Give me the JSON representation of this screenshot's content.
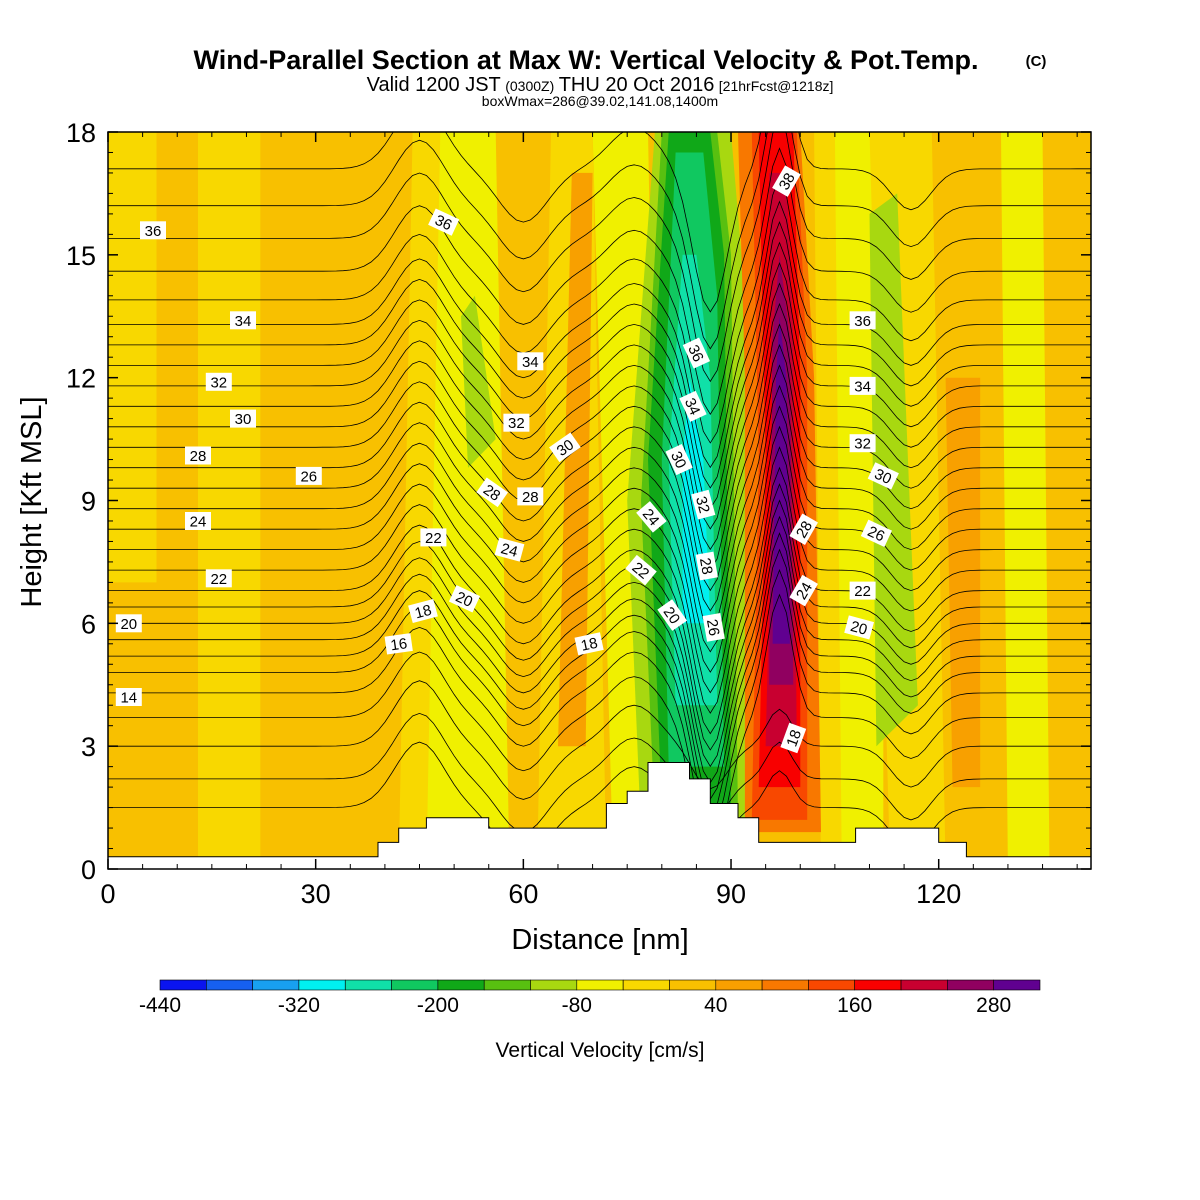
{
  "header": {
    "title": "Wind-Parallel Section at Max W: Vertical Velocity & Pot.Temp.",
    "copyright": "(C)",
    "valid_prefix": "Valid 1200 JST",
    "valid_utc": "(0300Z)",
    "valid_date": "THU 20 Oct 2016",
    "forecast_tag": "[21hrFcst@1218z]",
    "box_info": "boxWmax=286@39.02,141.08,1400m"
  },
  "chart_data": {
    "type": "contour",
    "xlabel": "Distance [nm]",
    "ylabel": "Height [Kft MSL]",
    "xlim": [
      0,
      142
    ],
    "ylim": [
      0,
      18
    ],
    "x_ticks": [
      0,
      30,
      60,
      90,
      120
    ],
    "y_ticks": [
      0,
      3,
      6,
      9,
      12,
      15,
      18
    ],
    "x_tick_labels": [
      "0",
      "30",
      "60",
      "90",
      "120"
    ],
    "y_tick_labels": [
      "0",
      "3",
      "6",
      "9",
      "12",
      "15",
      "18"
    ],
    "filled_field": {
      "name": "Vertical Velocity",
      "colorbar_label": "Vertical Velocity [cm/s]",
      "levels": [
        -440,
        -400,
        -360,
        -320,
        -280,
        -240,
        -200,
        -160,
        -120,
        -80,
        -40,
        0,
        40,
        80,
        120,
        160,
        200,
        240,
        280,
        320
      ],
      "colorbar_tick_labels": [
        "-440",
        "-320",
        "-200",
        "-80",
        "40",
        "160",
        "280"
      ],
      "colors": [
        "#0a14f0",
        "#1660f0",
        "#18a0f0",
        "#00f0f0",
        "#10e0a8",
        "#10c860",
        "#10a818",
        "#58c010",
        "#a8d810",
        "#f0f000",
        "#f8d800",
        "#f8c000",
        "#f8a000",
        "#f87800",
        "#f84800",
        "#f80000",
        "#c80030",
        "#900060",
        "#600090"
      ]
    },
    "features": [
      {
        "kind": "downdraft",
        "x_range": [
          78,
          92
        ],
        "min_value": -240
      },
      {
        "kind": "updraft",
        "x_range": [
          93,
          101
        ],
        "max_value": 286
      },
      {
        "kind": "terrain",
        "x_peak": 81,
        "height_peak": 2.6
      }
    ],
    "contour_labels": [
      {
        "text": "36",
        "x": 6.5,
        "y": 15.6,
        "angle": 0
      },
      {
        "text": "34",
        "x": 19.5,
        "y": 13.4,
        "angle": 0
      },
      {
        "text": "32",
        "x": 16,
        "y": 11.9,
        "angle": 0
      },
      {
        "text": "30",
        "x": 19.5,
        "y": 11.0,
        "angle": 0
      },
      {
        "text": "28",
        "x": 13,
        "y": 10.1,
        "angle": 0
      },
      {
        "text": "26",
        "x": 29,
        "y": 9.6,
        "angle": 0
      },
      {
        "text": "24",
        "x": 13,
        "y": 8.5,
        "angle": 0
      },
      {
        "text": "22",
        "x": 16,
        "y": 7.1,
        "angle": 0
      },
      {
        "text": "20",
        "x": 3,
        "y": 6.0,
        "angle": 0
      },
      {
        "text": "14",
        "x": 3,
        "y": 4.2,
        "angle": 0
      },
      {
        "text": "36",
        "x": 48.5,
        "y": 15.8,
        "angle": 25
      },
      {
        "text": "34",
        "x": 61,
        "y": 12.4,
        "angle": 0
      },
      {
        "text": "32",
        "x": 59,
        "y": 10.9,
        "angle": 0
      },
      {
        "text": "30",
        "x": 66,
        "y": 10.3,
        "angle": -35
      },
      {
        "text": "28",
        "x": 55.5,
        "y": 9.2,
        "angle": 35
      },
      {
        "text": "28",
        "x": 61,
        "y": 9.1,
        "angle": 0
      },
      {
        "text": "22",
        "x": 47,
        "y": 8.1,
        "angle": 0
      },
      {
        "text": "24",
        "x": 58,
        "y": 7.8,
        "angle": 15
      },
      {
        "text": "20",
        "x": 51.5,
        "y": 6.6,
        "angle": 25
      },
      {
        "text": "18",
        "x": 45.5,
        "y": 6.3,
        "angle": -15
      },
      {
        "text": "16",
        "x": 42,
        "y": 5.5,
        "angle": -8
      },
      {
        "text": "18",
        "x": 69.5,
        "y": 5.5,
        "angle": -12
      },
      {
        "text": "24",
        "x": 78.5,
        "y": 8.6,
        "angle": 50
      },
      {
        "text": "22",
        "x": 77,
        "y": 7.3,
        "angle": 40
      },
      {
        "text": "20",
        "x": 81.5,
        "y": 6.2,
        "angle": 55
      },
      {
        "text": "36",
        "x": 85,
        "y": 12.6,
        "angle": 65
      },
      {
        "text": "34",
        "x": 84.5,
        "y": 11.3,
        "angle": 65
      },
      {
        "text": "30",
        "x": 82.5,
        "y": 10.0,
        "angle": 65
      },
      {
        "text": "32",
        "x": 86,
        "y": 8.9,
        "angle": 75
      },
      {
        "text": "28",
        "x": 86.5,
        "y": 7.4,
        "angle": 80
      },
      {
        "text": "26",
        "x": 87.5,
        "y": 5.9,
        "angle": 80
      },
      {
        "text": "38",
        "x": 98,
        "y": 16.8,
        "angle": -60
      },
      {
        "text": "28",
        "x": 100.5,
        "y": 8.3,
        "angle": -60
      },
      {
        "text": "24",
        "x": 100.5,
        "y": 6.8,
        "angle": -60
      },
      {
        "text": "18",
        "x": 99,
        "y": 3.2,
        "angle": -70
      },
      {
        "text": "36",
        "x": 109,
        "y": 13.4,
        "angle": 0
      },
      {
        "text": "34",
        "x": 109,
        "y": 11.8,
        "angle": 0
      },
      {
        "text": "32",
        "x": 109,
        "y": 10.4,
        "angle": 0
      },
      {
        "text": "30",
        "x": 112,
        "y": 9.6,
        "angle": 25
      },
      {
        "text": "26",
        "x": 111,
        "y": 8.2,
        "angle": 25
      },
      {
        "text": "22",
        "x": 109,
        "y": 6.8,
        "angle": 0
      },
      {
        "text": "20",
        "x": 108.5,
        "y": 5.9,
        "angle": 15
      }
    ]
  }
}
